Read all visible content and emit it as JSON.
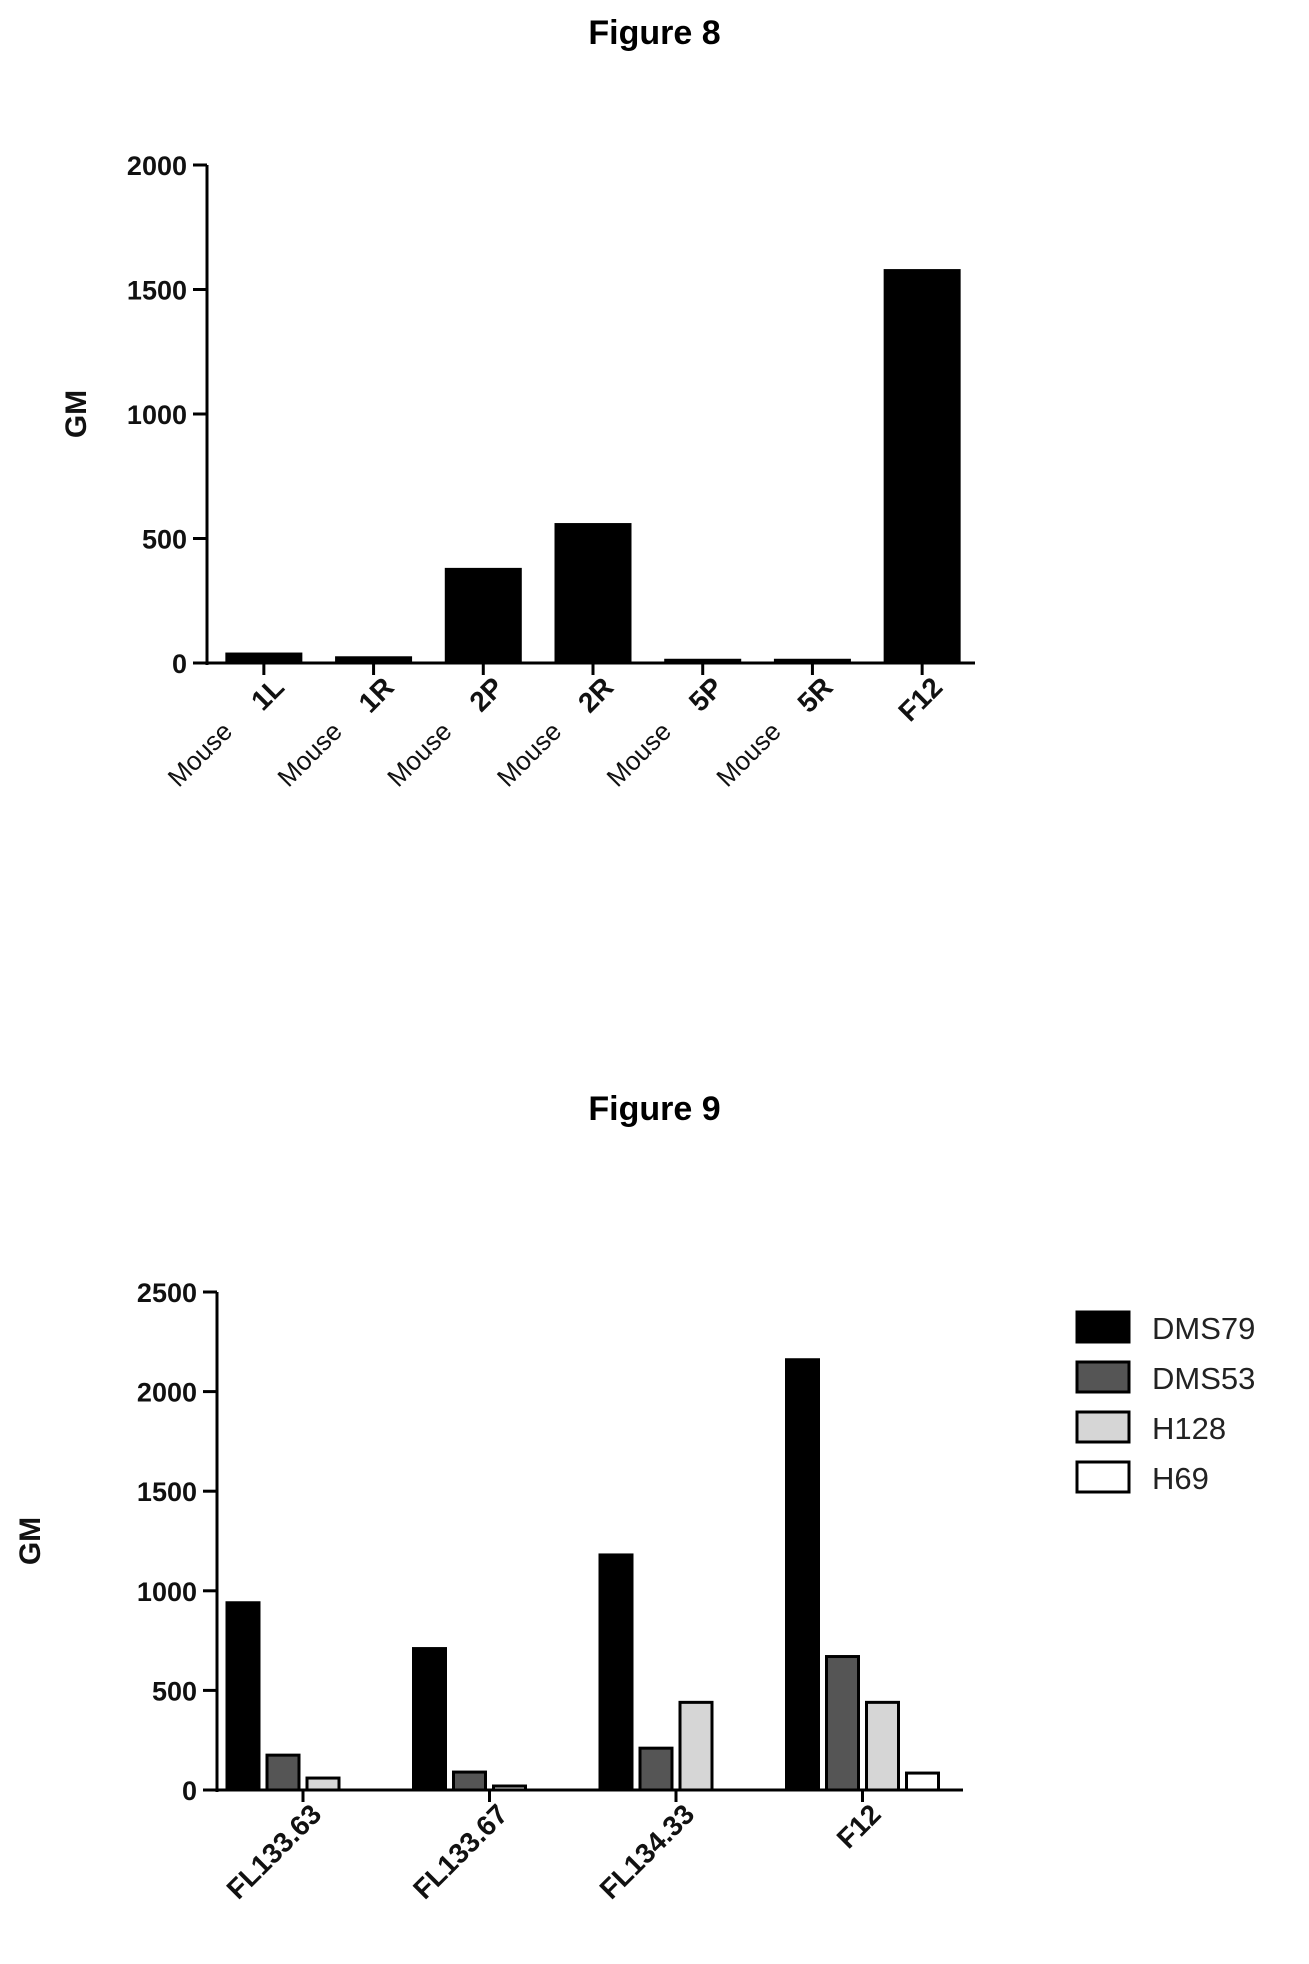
{
  "chart_data": [
    {
      "type": "bar",
      "title": "Figure 8",
      "ylabel": "GM",
      "xlabel": "",
      "ylim": [
        0,
        2000
      ],
      "yticks": [
        0,
        500,
        1000,
        1500,
        2000
      ],
      "categories": [
        {
          "prefix": "Mouse",
          "label": "1L"
        },
        {
          "prefix": "Mouse",
          "label": "1R"
        },
        {
          "prefix": "Mouse",
          "label": "2P"
        },
        {
          "prefix": "Mouse",
          "label": "2R"
        },
        {
          "prefix": "Mouse",
          "label": "5P"
        },
        {
          "prefix": "Mouse",
          "label": "5R"
        },
        {
          "prefix": "",
          "label": "F12"
        }
      ],
      "values": [
        40,
        25,
        380,
        560,
        15,
        15,
        1580
      ],
      "bar_color": "#000000",
      "grid": false
    },
    {
      "type": "bar",
      "title": "Figure 9",
      "ylabel": "GM",
      "xlabel": "",
      "ylim": [
        0,
        2500
      ],
      "yticks": [
        0,
        500,
        1000,
        1500,
        2000,
        2500
      ],
      "categories": [
        "FL133.63",
        "FL133.67",
        "FL134.33",
        "F12"
      ],
      "series": [
        {
          "name": "DMS79",
          "color": "#000000",
          "values": [
            940,
            710,
            1180,
            2160
          ]
        },
        {
          "name": "DMS53",
          "color": "#555555",
          "values": [
            175,
            90,
            210,
            670
          ]
        },
        {
          "name": "H128",
          "color": "#d6d6d6",
          "values": [
            60,
            20,
            440,
            440
          ]
        },
        {
          "name": "H69",
          "color": "#ffffff",
          "values": [
            0,
            0,
            0,
            85
          ]
        }
      ],
      "legend_position": "right",
      "grid": false
    }
  ]
}
